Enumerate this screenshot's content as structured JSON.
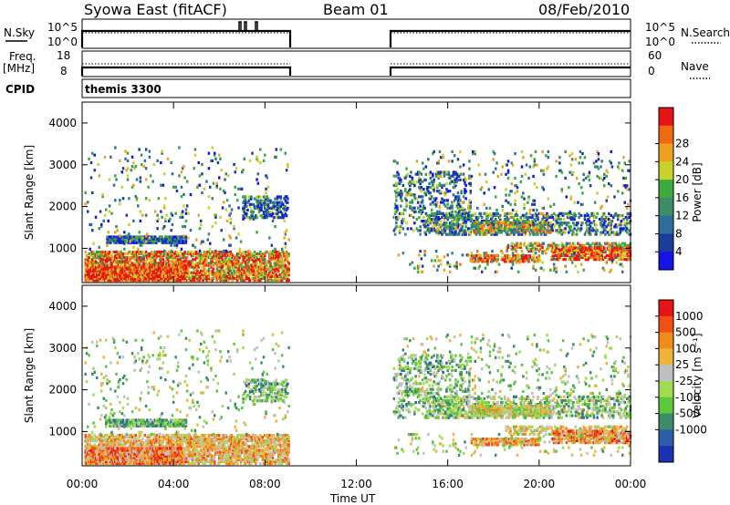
{
  "header": {
    "station": "Syowa East (fitACF)",
    "beam": "Beam 01",
    "date": "08/Feb/2010"
  },
  "strips": {
    "nsky_label": "N.Sky",
    "nsky_tick_top": "10^5",
    "nsky_tick_bottom": "10^0",
    "nsearch_label": "N.Search",
    "nsearch_tick_top": "10^5",
    "nsearch_tick_bottom": "10^0",
    "freq_label_line1": "Freq.",
    "freq_label_line2": "[MHz]",
    "freq_tick_top": "18",
    "freq_tick_bottom": "8",
    "nave_label": "Nave",
    "nave_tick_top": "60",
    "nave_tick_bottom": "0",
    "cpid_label": "CPID",
    "cpid_value": "themis 3300"
  },
  "colors": {
    "power_scale": [
      "#1414e6",
      "#1c3c9c",
      "#2e6e9a",
      "#3c8c6a",
      "#3caa3c",
      "#c8d22a",
      "#f0a020",
      "#f06a14",
      "#e61414"
    ],
    "velocity_scale": [
      "#e61414",
      "#f05014",
      "#f08c1e",
      "#f0b43c",
      "#c0c0c0",
      "#a0dc50",
      "#5cc83c",
      "#3c8c6a",
      "#2e5eaa",
      "#1c30b4"
    ]
  },
  "chart_data": [
    {
      "type": "heatmap",
      "panel": "power",
      "ylabel": "Slant Range [km]",
      "yticks": [
        "1000",
        "2000",
        "3000",
        "4000"
      ],
      "ylim": [
        180,
        4500
      ],
      "xlim": [
        "00:00",
        "24:00"
      ],
      "xtick_labels": [
        "00:00",
        "04:00",
        "08:00",
        "12:00",
        "16:00",
        "20:00",
        "00:00"
      ],
      "colorbar_label": "Power [dB]",
      "colorbar_ticks": [
        "4",
        "8",
        "12",
        "16",
        "20",
        "24",
        "28"
      ],
      "data_gap": [
        "09:00",
        "13:30"
      ]
    },
    {
      "type": "heatmap",
      "panel": "velocity",
      "ylabel": "Slant Range [km]",
      "yticks": [
        "1000",
        "2000",
        "3000",
        "4000"
      ],
      "ylim": [
        180,
        4500
      ],
      "xlim": [
        "00:00",
        "24:00"
      ],
      "xtick_labels": [
        "00:00",
        "04:00",
        "08:00",
        "12:00",
        "16:00",
        "20:00",
        "00:00"
      ],
      "xlabel": "Time UT",
      "colorbar_label": "Velocity [m s⁻¹]",
      "colorbar_ticks": [
        "1000",
        "500",
        "100",
        "25",
        "-25",
        "-100",
        "-500",
        "-1000"
      ],
      "data_gap": [
        "09:00",
        "13:30"
      ]
    }
  ]
}
